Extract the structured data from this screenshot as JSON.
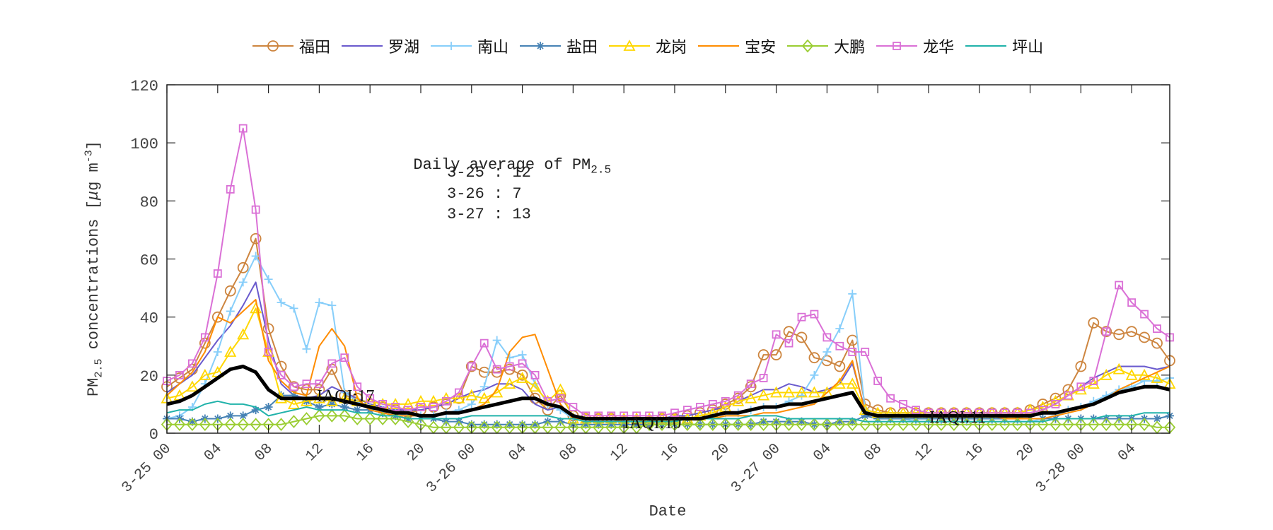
{
  "chart_data": {
    "type": "line",
    "title": "",
    "xlabel": "Date",
    "ylabel": "PM2.5 concentrations [μg m-3]",
    "ylabel_parts": {
      "main": "PM",
      "sub": "2.5",
      "rest": " concentrations [",
      "mu": "μ",
      "unit": "g m",
      "sup": "-3",
      "close": "]"
    },
    "ylim": [
      0,
      120
    ],
    "yticks": [
      0,
      20,
      40,
      60,
      80,
      100,
      120
    ],
    "x_unit": "hours since 3-25 00",
    "xlim": [
      0,
      78
    ],
    "xticks": [
      {
        "h": 0,
        "label": "3-25 00"
      },
      {
        "h": 4,
        "label": "04"
      },
      {
        "h": 8,
        "label": "08"
      },
      {
        "h": 12,
        "label": "12"
      },
      {
        "h": 16,
        "label": "16"
      },
      {
        "h": 20,
        "label": "20"
      },
      {
        "h": 24,
        "label": "3-26 00"
      },
      {
        "h": 28,
        "label": "04"
      },
      {
        "h": 32,
        "label": "08"
      },
      {
        "h": 36,
        "label": "12"
      },
      {
        "h": 40,
        "label": "16"
      },
      {
        "h": 44,
        "label": "20"
      },
      {
        "h": 48,
        "label": "3-27 00"
      },
      {
        "h": 52,
        "label": "04"
      },
      {
        "h": 56,
        "label": "08"
      },
      {
        "h": 60,
        "label": "12"
      },
      {
        "h": 64,
        "label": "16"
      },
      {
        "h": 68,
        "label": "20"
      },
      {
        "h": 72,
        "label": "3-28 00"
      },
      {
        "h": 76,
        "label": "04"
      }
    ],
    "grid": false,
    "legend_position": "top",
    "annotations": {
      "daily_avg_title": "Daily average of PM",
      "daily_avg_sub": "2.5",
      "daily_avg": [
        {
          "date": "3-25",
          "value": 12,
          "text": "3-25 : 12"
        },
        {
          "date": "3-26",
          "value": 7,
          "text": "3-26 : 7"
        },
        {
          "date": "3-27",
          "value": 13,
          "text": "3-27 : 13"
        }
      ],
      "iaqi": [
        {
          "text": "IAQI:17",
          "h": 12,
          "y": 13
        },
        {
          "text": "IAQI:10",
          "h": 36,
          "y": 5
        },
        {
          "text": "IAQI:11",
          "h": 60,
          "y": 6
        }
      ]
    },
    "series": [
      {
        "name": "福田",
        "color": "#cd853f",
        "marker": "circle",
        "values": [
          16,
          19,
          22,
          31,
          40,
          49,
          57,
          67,
          36,
          23,
          16,
          15,
          15,
          22,
          13,
          12,
          10,
          9,
          8,
          7,
          8,
          9,
          10,
          12,
          23,
          21,
          21,
          22,
          20,
          12,
          8,
          13,
          6,
          5,
          5,
          5,
          4,
          4,
          4,
          5,
          5,
          6,
          7,
          8,
          10,
          12,
          16,
          27,
          27,
          35,
          33,
          26,
          25,
          23,
          32,
          10,
          8,
          7,
          7,
          7,
          7,
          7,
          7,
          7,
          7,
          7,
          7,
          7,
          8,
          10,
          12,
          15,
          23,
          38,
          35,
          34,
          35,
          33,
          31,
          25
        ]
      },
      {
        "name": "罗湖",
        "color": "#6a5acd",
        "marker": "none",
        "values": [
          14,
          17,
          20,
          26,
          32,
          37,
          44,
          52,
          32,
          17,
          13,
          12,
          13,
          16,
          14,
          12,
          10,
          9,
          8,
          8,
          8,
          9,
          10,
          12,
          14,
          15,
          17,
          17,
          15,
          10,
          8,
          9,
          6,
          5,
          5,
          5,
          5,
          5,
          5,
          5,
          6,
          6,
          7,
          8,
          9,
          11,
          13,
          15,
          15,
          17,
          16,
          14,
          15,
          17,
          24,
          8,
          7,
          7,
          7,
          7,
          7,
          7,
          7,
          7,
          7,
          7,
          7,
          7,
          7,
          8,
          10,
          13,
          16,
          19,
          21,
          23,
          23,
          23,
          22,
          23
        ]
      },
      {
        "name": "南山",
        "color": "#87cefa",
        "marker": "plus",
        "values": [
          5,
          6,
          9,
          17,
          28,
          42,
          52,
          61,
          53,
          45,
          43,
          29,
          45,
          44,
          14,
          11,
          9,
          8,
          7,
          6,
          6,
          6,
          7,
          8,
          10,
          16,
          32,
          26,
          27,
          17,
          10,
          8,
          5,
          5,
          4,
          4,
          4,
          4,
          4,
          4,
          4,
          5,
          5,
          6,
          7,
          7,
          8,
          9,
          9,
          11,
          13,
          20,
          28,
          36,
          48,
          8,
          5,
          5,
          5,
          4,
          4,
          4,
          4,
          4,
          4,
          4,
          4,
          4,
          4,
          5,
          6,
          8,
          9,
          11,
          13,
          15,
          16,
          18,
          18,
          19
        ]
      },
      {
        "name": "盐田",
        "color": "#4682b4",
        "marker": "star",
        "values": [
          5,
          5,
          4,
          5,
          5,
          6,
          6,
          8,
          9,
          13,
          13,
          11,
          9,
          10,
          9,
          8,
          8,
          7,
          6,
          5,
          5,
          5,
          4,
          4,
          3,
          3,
          3,
          3,
          3,
          3,
          4,
          4,
          3,
          3,
          3,
          3,
          3,
          3,
          3,
          3,
          3,
          3,
          3,
          3,
          3,
          3,
          3,
          4,
          4,
          4,
          4,
          3,
          3,
          4,
          4,
          6,
          5,
          5,
          5,
          5,
          5,
          5,
          5,
          5,
          5,
          5,
          5,
          5,
          5,
          5,
          5,
          5,
          5,
          5,
          5,
          5,
          5,
          5,
          5,
          6
        ]
      },
      {
        "name": "龙岗",
        "color": "#ffd700",
        "marker": "triangle",
        "values": [
          12,
          13,
          16,
          20,
          21,
          28,
          34,
          43,
          28,
          12,
          10,
          11,
          12,
          11,
          12,
          11,
          11,
          10,
          10,
          10,
          11,
          11,
          12,
          12,
          13,
          12,
          14,
          17,
          19,
          16,
          11,
          15,
          5,
          5,
          5,
          5,
          5,
          5,
          5,
          5,
          5,
          5,
          6,
          7,
          9,
          11,
          12,
          13,
          14,
          14,
          14,
          14,
          14,
          17,
          17,
          8,
          7,
          7,
          7,
          7,
          7,
          7,
          7,
          7,
          7,
          7,
          7,
          7,
          8,
          9,
          11,
          13,
          15,
          17,
          20,
          22,
          20,
          20,
          19,
          17
        ]
      },
      {
        "name": "宝安",
        "color": "#ff8c00",
        "marker": "none",
        "values": [
          13,
          17,
          21,
          28,
          40,
          38,
          42,
          46,
          25,
          18,
          14,
          13,
          30,
          36,
          30,
          12,
          8,
          7,
          6,
          6,
          6,
          6,
          7,
          7,
          8,
          10,
          15,
          28,
          33,
          34,
          22,
          10,
          5,
          5,
          5,
          5,
          5,
          5,
          5,
          5,
          5,
          5,
          5,
          5,
          6,
          6,
          6,
          7,
          7,
          8,
          9,
          10,
          14,
          18,
          25,
          7,
          6,
          6,
          6,
          6,
          6,
          6,
          6,
          6,
          6,
          6,
          5,
          5,
          5,
          5,
          6,
          7,
          8,
          10,
          12,
          15,
          17,
          19,
          21,
          23
        ]
      },
      {
        "name": "大鹏",
        "color": "#9acd32",
        "marker": "diamond",
        "values": [
          3,
          3,
          3,
          3,
          3,
          3,
          3,
          3,
          3,
          3,
          4,
          5,
          6,
          6,
          6,
          5,
          5,
          5,
          5,
          4,
          3,
          2,
          2,
          2,
          2,
          2,
          2,
          2,
          2,
          2,
          2,
          2,
          2,
          2,
          2,
          2,
          2,
          2,
          3,
          3,
          3,
          3,
          3,
          3,
          3,
          3,
          3,
          3,
          3,
          3,
          3,
          3,
          3,
          3,
          3,
          3,
          3,
          3,
          3,
          3,
          3,
          3,
          3,
          3,
          3,
          3,
          3,
          3,
          3,
          3,
          3,
          3,
          3,
          3,
          3,
          3,
          3,
          3,
          2,
          2
        ]
      },
      {
        "name": "龙华",
        "color": "#da70d6",
        "marker": "square",
        "values": [
          18,
          20,
          24,
          33,
          55,
          84,
          105,
          77,
          28,
          20,
          16,
          17,
          17,
          24,
          26,
          16,
          12,
          10,
          9,
          8,
          9,
          9,
          11,
          14,
          23,
          31,
          22,
          23,
          24,
          20,
          11,
          12,
          9,
          6,
          6,
          6,
          6,
          6,
          6,
          6,
          7,
          8,
          9,
          10,
          11,
          13,
          17,
          19,
          34,
          31,
          40,
          41,
          33,
          30,
          28,
          28,
          18,
          12,
          10,
          8,
          7,
          7,
          7,
          7,
          7,
          7,
          7,
          7,
          7,
          8,
          10,
          13,
          16,
          18,
          35,
          51,
          45,
          41,
          36,
          33
        ]
      },
      {
        "name": "坪山",
        "color": "#20b2aa",
        "marker": "none",
        "values": [
          7,
          8,
          8,
          10,
          11,
          10,
          10,
          9,
          6,
          7,
          8,
          9,
          8,
          8,
          8,
          7,
          7,
          6,
          6,
          5,
          5,
          5,
          5,
          5,
          6,
          6,
          6,
          6,
          6,
          6,
          6,
          5,
          5,
          4,
          4,
          4,
          4,
          4,
          4,
          4,
          4,
          5,
          5,
          5,
          5,
          5,
          6,
          6,
          6,
          5,
          5,
          5,
          5,
          5,
          5,
          4,
          4,
          4,
          4,
          4,
          4,
          4,
          4,
          4,
          4,
          4,
          4,
          4,
          4,
          4,
          5,
          5,
          5,
          5,
          6,
          6,
          6,
          7,
          7,
          7
        ]
      },
      {
        "name": "Average",
        "color": "#000000",
        "marker": "none",
        "thick": true,
        "in_legend": false,
        "values": [
          10,
          11,
          13,
          16,
          19,
          22,
          23,
          21,
          15,
          12,
          12,
          12,
          12,
          12,
          11,
          10,
          9,
          8,
          7,
          7,
          6,
          6,
          7,
          7,
          8,
          9,
          10,
          11,
          12,
          12,
          10,
          9,
          6,
          5,
          5,
          5,
          5,
          5,
          5,
          5,
          5,
          5,
          5,
          6,
          7,
          7,
          8,
          9,
          9,
          10,
          10,
          11,
          12,
          13,
          14,
          7,
          6,
          6,
          6,
          6,
          6,
          6,
          6,
          6,
          6,
          6,
          6,
          6,
          6,
          7,
          7,
          8,
          9,
          10,
          12,
          14,
          15,
          16,
          16,
          15
        ]
      }
    ]
  }
}
